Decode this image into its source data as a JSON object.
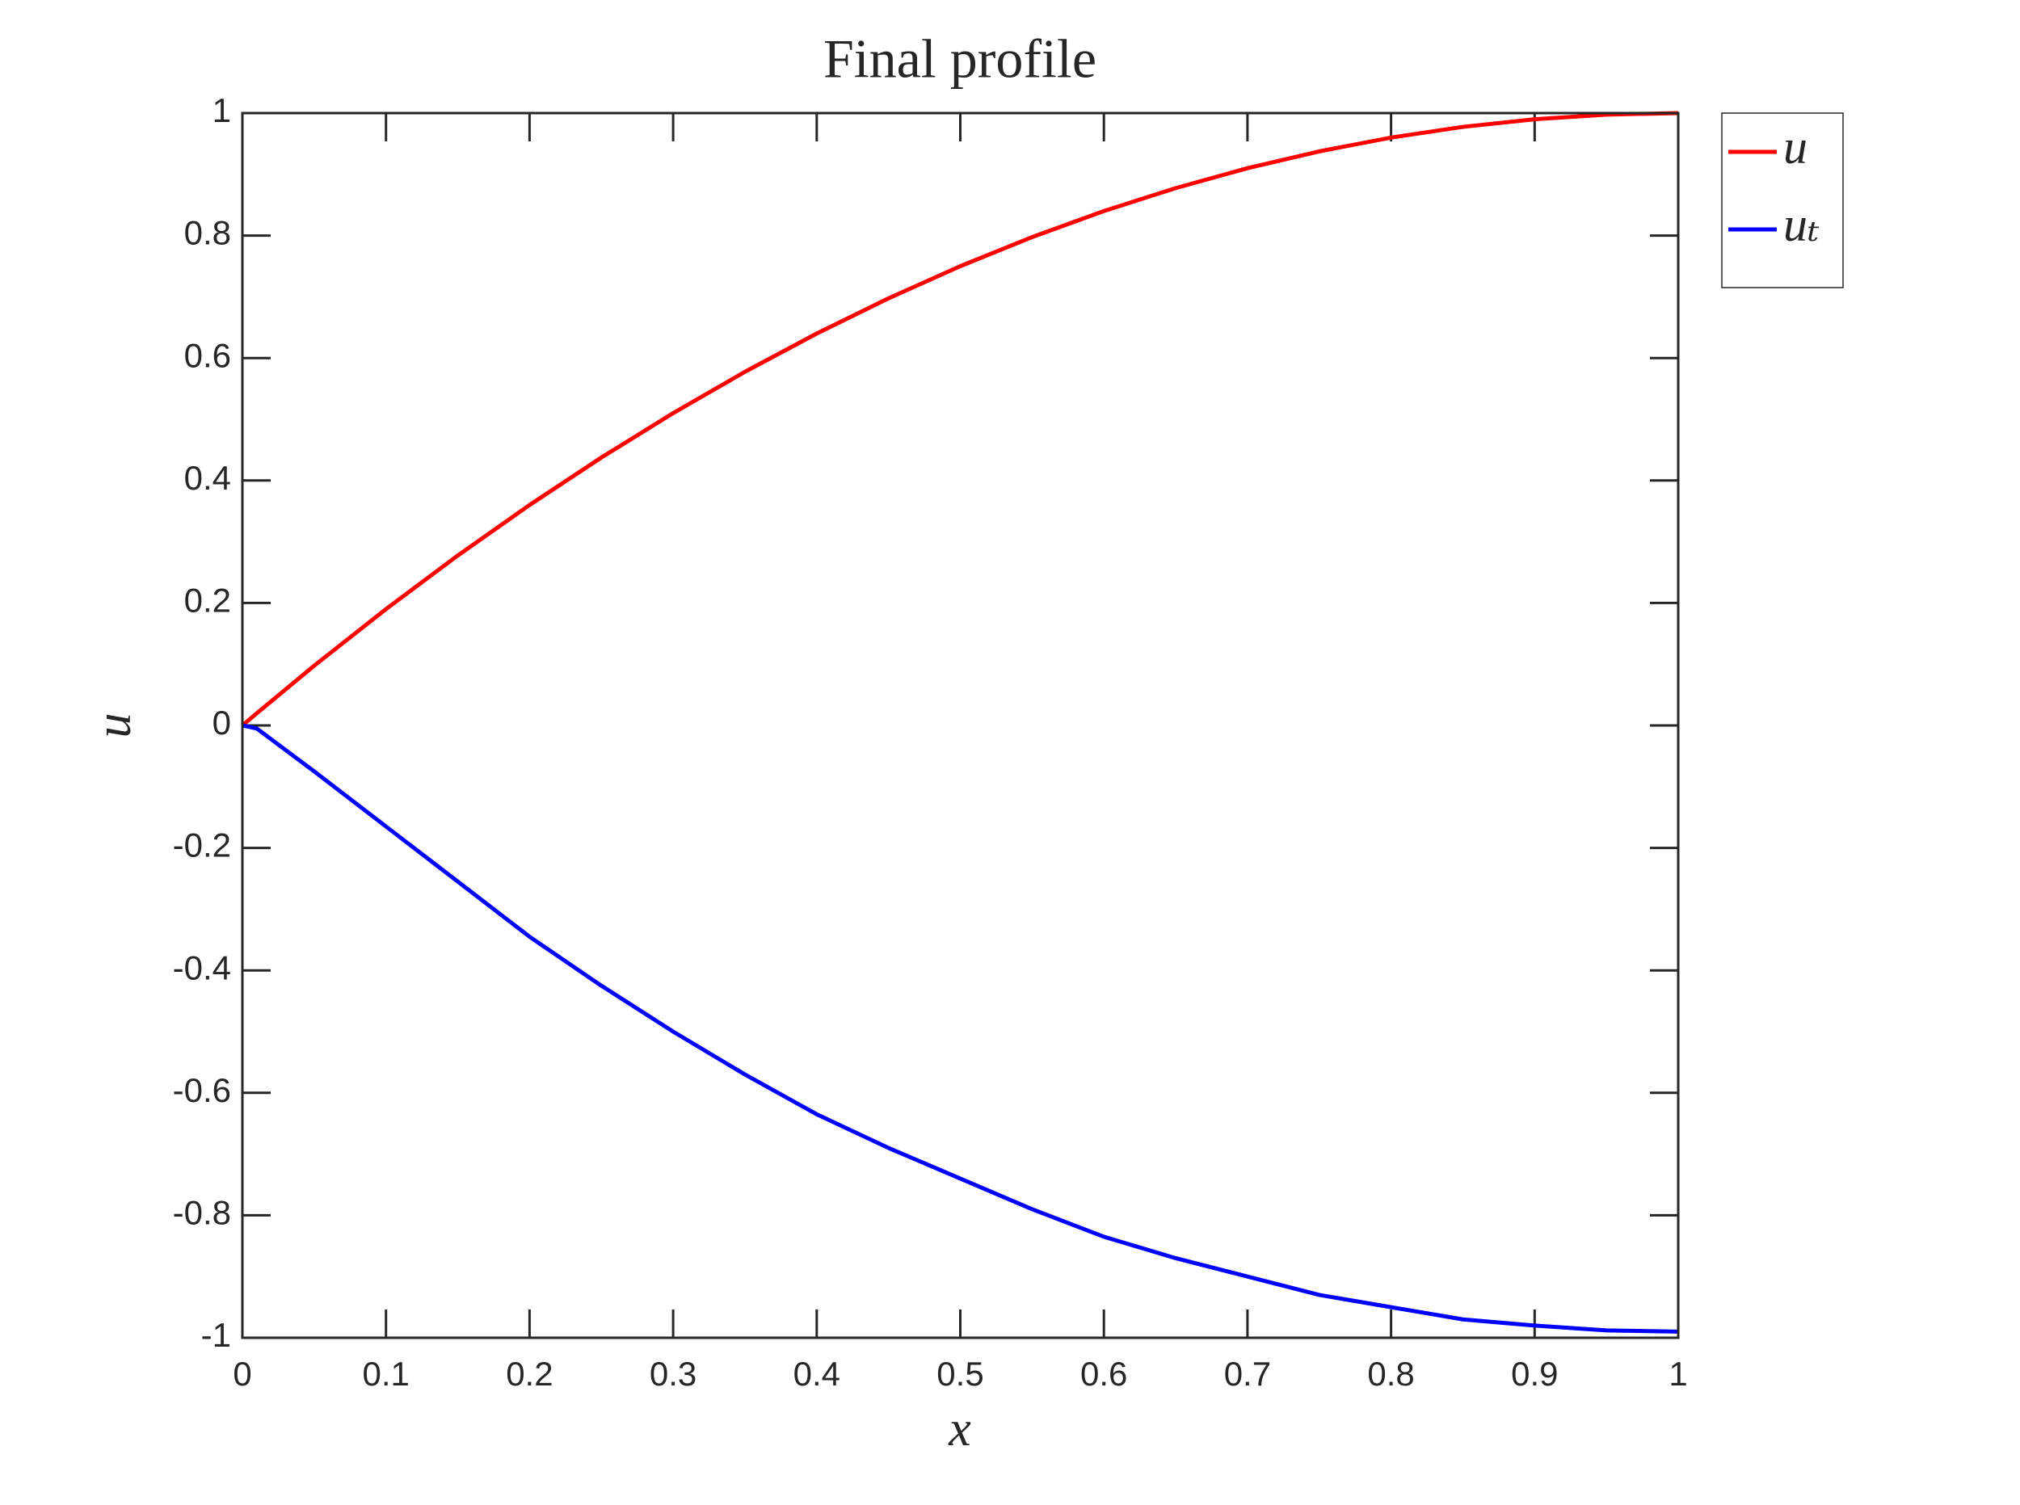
{
  "chart_data": {
    "type": "line",
    "title": "Final profile",
    "xlabel": "x",
    "ylabel": "u",
    "x": [
      0,
      0.01,
      0.05,
      0.1,
      0.15,
      0.2,
      0.25,
      0.3,
      0.35,
      0.4,
      0.45,
      0.5,
      0.55,
      0.6,
      0.65,
      0.7,
      0.75,
      0.8,
      0.85,
      0.9,
      0.95,
      1
    ],
    "series": [
      {
        "name": "u",
        "color": "#ff0000",
        "values": [
          0,
          0.0199,
          0.0975,
          0.19,
          0.2775,
          0.36,
          0.4375,
          0.51,
          0.5775,
          0.64,
          0.6975,
          0.75,
          0.7975,
          0.84,
          0.8775,
          0.91,
          0.9375,
          0.96,
          0.9775,
          0.99,
          0.9975,
          1
        ]
      },
      {
        "name": "uₜ",
        "color": "#0000ff",
        "values": [
          0,
          -0.005,
          -0.075,
          -0.165,
          -0.255,
          -0.345,
          -0.425,
          -0.5,
          -0.57,
          -0.635,
          -0.69,
          -0.74,
          -0.79,
          -0.835,
          -0.87,
          -0.9,
          -0.93,
          -0.95,
          -0.97,
          -0.98,
          -0.988,
          -0.99
        ]
      }
    ],
    "xlim": [
      0,
      1
    ],
    "ylim": [
      -1,
      1
    ],
    "xticks": [
      0,
      0.1,
      0.2,
      0.3,
      0.4,
      0.5,
      0.6,
      0.7,
      0.8,
      0.9,
      1
    ],
    "yticks": [
      -1,
      -0.8,
      -0.6,
      -0.4,
      -0.2,
      0,
      0.2,
      0.4,
      0.6,
      0.8,
      1
    ],
    "grid": false,
    "legend": "outside-top-right"
  }
}
